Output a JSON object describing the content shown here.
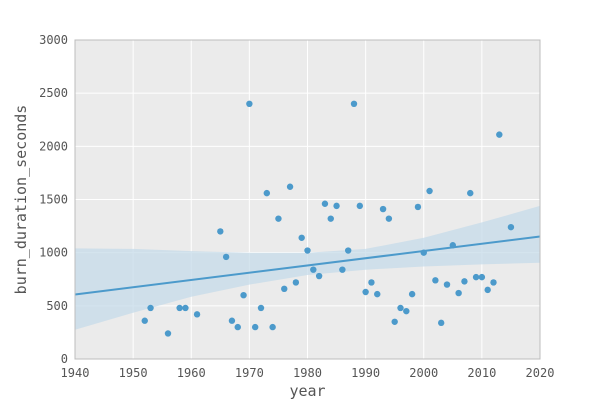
{
  "chart_data": {
    "type": "scatter",
    "title": "",
    "xlabel": "year",
    "ylabel": "burn_duration_seconds",
    "xlim": [
      1940,
      2020
    ],
    "ylim": [
      0,
      3000
    ],
    "xticks": [
      1940,
      1950,
      1960,
      1970,
      1980,
      1990,
      2000,
      2010,
      2020
    ],
    "yticks": [
      0,
      500,
      1000,
      1500,
      2000,
      2500,
      3000
    ],
    "grid": true,
    "colors": {
      "background": "#ebebeb",
      "grid": "#ffffff",
      "frame": "#bdbdbd",
      "points": "#4c9acb",
      "fit_line": "#4c9acb",
      "confidence_band": "#c6dbea"
    },
    "points": [
      [
        1952,
        360
      ],
      [
        1953,
        480
      ],
      [
        1956,
        240
      ],
      [
        1958,
        480
      ],
      [
        1959,
        480
      ],
      [
        1961,
        420
      ],
      [
        1965,
        1200
      ],
      [
        1966,
        960
      ],
      [
        1967,
        360
      ],
      [
        1968,
        300
      ],
      [
        1969,
        600
      ],
      [
        1970,
        2400
      ],
      [
        1971,
        300
      ],
      [
        1972,
        480
      ],
      [
        1973,
        1560
      ],
      [
        1974,
        300
      ],
      [
        1975,
        1320
      ],
      [
        1976,
        660
      ],
      [
        1977,
        1620
      ],
      [
        1978,
        720
      ],
      [
        1979,
        1140
      ],
      [
        1980,
        1020
      ],
      [
        1981,
        840
      ],
      [
        1982,
        780
      ],
      [
        1983,
        1460
      ],
      [
        1984,
        1320
      ],
      [
        1985,
        1440
      ],
      [
        1986,
        840
      ],
      [
        1987,
        1020
      ],
      [
        1988,
        2400
      ],
      [
        1989,
        1440
      ],
      [
        1990,
        630
      ],
      [
        1991,
        720
      ],
      [
        1992,
        610
      ],
      [
        1993,
        1410
      ],
      [
        1994,
        1320
      ],
      [
        1995,
        350
      ],
      [
        1996,
        480
      ],
      [
        1997,
        450
      ],
      [
        1998,
        610
      ],
      [
        1999,
        1430
      ],
      [
        2000,
        1000
      ],
      [
        2001,
        1580
      ],
      [
        2002,
        740
      ],
      [
        2003,
        340
      ],
      [
        2004,
        700
      ],
      [
        2005,
        1070
      ],
      [
        2006,
        620
      ],
      [
        2007,
        730
      ],
      [
        2008,
        1560
      ],
      [
        2009,
        770
      ],
      [
        2010,
        770
      ],
      [
        2011,
        650
      ],
      [
        2012,
        720
      ],
      [
        2013,
        2110
      ],
      [
        2015,
        1240
      ]
    ],
    "regression": {
      "x": [
        1940,
        2020
      ],
      "y": [
        607,
        1152
      ]
    },
    "confidence_band": {
      "x": [
        1940,
        1950,
        1960,
        1970,
        1980,
        1990,
        2000,
        2010,
        2020
      ],
      "lower": [
        275,
        435,
        585,
        700,
        790,
        840,
        870,
        890,
        905
      ],
      "upper": [
        1040,
        1035,
        1015,
        1000,
        1000,
        1035,
        1140,
        1285,
        1440
      ]
    }
  }
}
